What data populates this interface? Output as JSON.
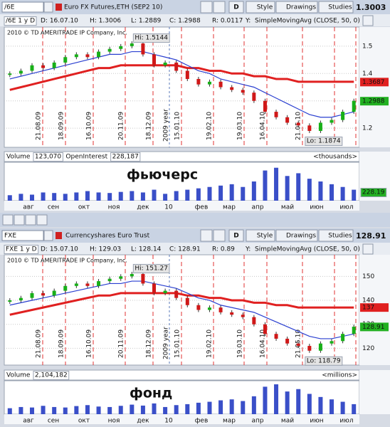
{
  "futures": {
    "toolbar": {
      "symbol": "/6E",
      "description": "Euro FX Futures,ETH (SEP2 10)",
      "buttons": [
        "D",
        "Style",
        "Drawings",
        "Studies"
      ],
      "last": "1.3003"
    },
    "info": [
      "/6E 1 y D",
      "D: 16.07.10",
      "H: 1.3006",
      "L: 1.2889",
      "C: 1.2988",
      "R: 0.0117",
      "Y:",
      "SimpleMovingAvg (CLOSE, 50, 0)"
    ],
    "watermark": "2010 © TD AMERITRADE IP Company, Inc.",
    "hi": "Hi: 1.5144",
    "lo": "Lo: 1.1874",
    "price": {
      "ylim": [
        1.13,
        1.57
      ],
      "yticks": [
        1.2,
        1.3,
        1.4,
        1.5
      ],
      "close": [
        1.4,
        1.41,
        1.43,
        1.42,
        1.44,
        1.46,
        1.47,
        1.46,
        1.48,
        1.49,
        1.5,
        1.51,
        1.47,
        1.43,
        1.44,
        1.41,
        1.38,
        1.36,
        1.37,
        1.35,
        1.34,
        1.33,
        1.3,
        1.26,
        1.24,
        1.22,
        1.21,
        1.19,
        1.22,
        1.23,
        1.26,
        1.3
      ],
      "sma_fast": [
        1.38,
        1.39,
        1.4,
        1.41,
        1.42,
        1.43,
        1.44,
        1.45,
        1.46,
        1.47,
        1.47,
        1.48,
        1.48,
        1.47,
        1.46,
        1.45,
        1.43,
        1.41,
        1.4,
        1.38,
        1.37,
        1.36,
        1.35,
        1.33,
        1.31,
        1.29,
        1.27,
        1.25,
        1.24,
        1.24,
        1.25,
        1.26
      ],
      "sma_slow": [
        1.34,
        1.35,
        1.36,
        1.37,
        1.38,
        1.39,
        1.4,
        1.41,
        1.42,
        1.42,
        1.43,
        1.43,
        1.43,
        1.43,
        1.43,
        1.43,
        1.42,
        1.42,
        1.41,
        1.41,
        1.4,
        1.4,
        1.39,
        1.39,
        1.38,
        1.38,
        1.37,
        1.37,
        1.37,
        1.37,
        1.37,
        1.37
      ],
      "right_labels": [
        {
          "value": 1.3687,
          "color": "#e02020"
        },
        {
          "value": 1.2988,
          "color": "#22b022"
        }
      ]
    },
    "event_dates": [
      "21.08.09",
      "18.09.09",
      "16.10.09",
      "20.11.09",
      "18.12.09",
      "15.01.10",
      "19.02.10",
      "19.03.10",
      "16.04.10",
      "21.05.10"
    ],
    "year_label": "2009 year",
    "volume": {
      "header": [
        "Volume",
        "123,070",
        "OpenInterest",
        "228,187"
      ],
      "unit": "<thousands>",
      "label": "фьючерс",
      "side_label": "228.19",
      "ylim": [
        0,
        140
      ],
      "values": [
        20,
        25,
        22,
        30,
        28,
        25,
        30,
        35,
        30,
        28,
        32,
        35,
        30,
        40,
        25,
        35,
        40,
        45,
        50,
        55,
        60,
        50,
        70,
        110,
        120,
        90,
        100,
        80,
        70,
        60,
        50,
        40
      ]
    },
    "months": [
      "авг",
      "сен",
      "окт",
      "ноя",
      "дек",
      "10",
      "фев",
      "мар",
      "апр",
      "май",
      "июн",
      "июл"
    ]
  },
  "fund": {
    "toolbar": {
      "symbol": "FXE",
      "description": "Currencyshares Euro Trust",
      "buttons": [
        "D",
        "Style",
        "Drawings",
        "Studies"
      ],
      "last": "128.91"
    },
    "info": [
      "FXE 1 y D",
      "D: 15.07.10",
      "H: 129.03",
      "L: 128.14",
      "C: 128.91",
      "R: 0.89",
      "Y:",
      "SimpleMovingAvg (CLOSE, 50, 0)"
    ],
    "watermark": "2010 © TD AMERITRADE IP Company, Inc.",
    "hi": "Hi: 151.27",
    "lo": "Lo: 118.79",
    "price": {
      "ylim": [
        113,
        159
      ],
      "yticks": [
        120,
        130,
        140,
        150
      ],
      "close": [
        140,
        141,
        143,
        142,
        144,
        146,
        147,
        146,
        148,
        149,
        150,
        151,
        147,
        143,
        144,
        141,
        138,
        136,
        137,
        135,
        134,
        133,
        130,
        126,
        124,
        122,
        121,
        119,
        122,
        123,
        126,
        129
      ],
      "sma_fast": [
        138,
        139,
        140,
        141,
        142,
        143,
        144,
        145,
        146,
        147,
        147,
        148,
        148,
        147,
        146,
        145,
        143,
        141,
        140,
        138,
        137,
        136,
        135,
        133,
        131,
        129,
        127,
        125,
        124,
        124,
        125,
        126
      ],
      "sma_slow": [
        134,
        135,
        136,
        137,
        138,
        139,
        140,
        141,
        142,
        142,
        143,
        143,
        143,
        143,
        143,
        143,
        142,
        142,
        141,
        141,
        140,
        140,
        139,
        139,
        138,
        138,
        137,
        137,
        137,
        137,
        137,
        137
      ],
      "right_labels": [
        {
          "value": 137,
          "color": "#e02020"
        },
        {
          "value": 128.91,
          "color": "#22b022"
        }
      ]
    },
    "event_dates": [
      "21.08.09",
      "18.09.09",
      "16.10.09",
      "20.11.09",
      "18.12.09",
      "15.01.10",
      "19.02.10",
      "19.03.10",
      "16.04.10",
      "21.05.10"
    ],
    "year_label": "2009 year",
    "volume": {
      "header": [
        "Volume",
        "2,104,182"
      ],
      "unit": "<millions>",
      "label": "фонд",
      "ylim": [
        0,
        140
      ],
      "values": [
        25,
        30,
        28,
        35,
        30,
        28,
        34,
        38,
        32,
        30,
        35,
        40,
        36,
        45,
        30,
        38,
        42,
        48,
        52,
        58,
        62,
        55,
        75,
        115,
        125,
        95,
        105,
        85,
        72,
        62,
        52,
        42
      ]
    },
    "months": [
      "авг",
      "сен",
      "окт",
      "ноя",
      "дек",
      "10",
      "фев",
      "мар",
      "апр",
      "май",
      "июн",
      "июл"
    ]
  }
}
